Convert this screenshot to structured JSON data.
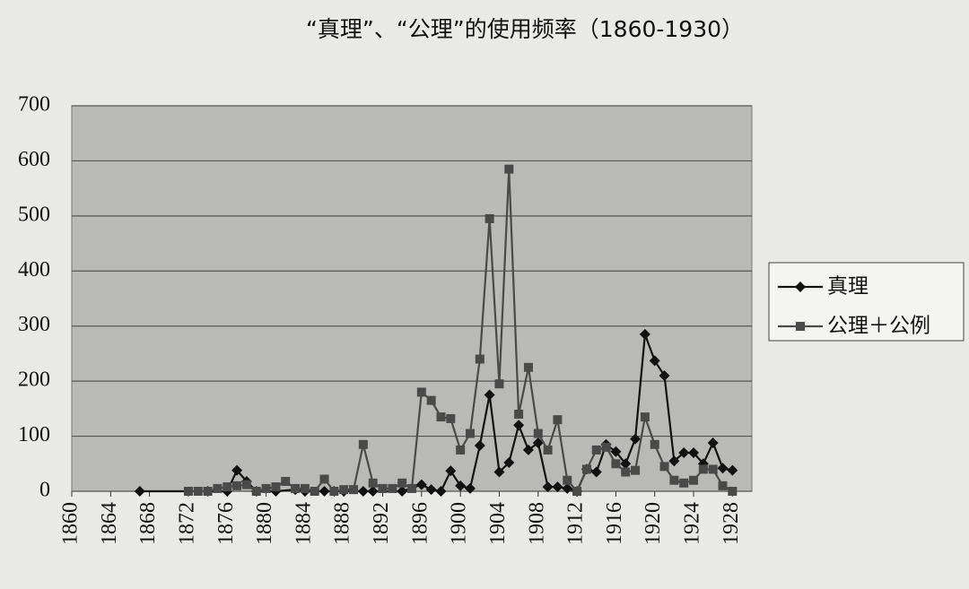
{
  "chart_data": {
    "type": "line",
    "title": "“真理”、“公理”的使用频率（1860-1930）",
    "xlim": [
      1860,
      1930
    ],
    "xticks": [
      1860,
      1864,
      1868,
      1872,
      1876,
      1880,
      1884,
      1888,
      1892,
      1896,
      1900,
      1904,
      1908,
      1912,
      1916,
      1920,
      1924,
      1928
    ],
    "ylim": [
      0,
      700
    ],
    "yticks": [
      0,
      100,
      200,
      300,
      400,
      500,
      600,
      700
    ],
    "grid": true,
    "legend": "right",
    "series": [
      {
        "name": "真理",
        "color": "#111111",
        "marker": "diamond",
        "x": [
          1867,
          1874,
          1876,
          1877,
          1878,
          1879,
          1881,
          1883,
          1884,
          1886,
          1887,
          1888,
          1890,
          1891,
          1894,
          1896,
          1897,
          1898,
          1899,
          1900,
          1901,
          1902,
          1903,
          1904,
          1905,
          1906,
          1907,
          1908,
          1909,
          1910,
          1911,
          1912,
          1913,
          1914,
          1915,
          1916,
          1917,
          1918,
          1919,
          1920,
          1921,
          1922,
          1923,
          1924,
          1925,
          1926,
          1927,
          1928
        ],
        "values": [
          0,
          0,
          0,
          38,
          18,
          0,
          0,
          3,
          0,
          0,
          0,
          0,
          0,
          0,
          0,
          12,
          3,
          0,
          37,
          10,
          5,
          83,
          175,
          35,
          52,
          120,
          75,
          88,
          8,
          8,
          5,
          0,
          40,
          35,
          85,
          72,
          50,
          95,
          285,
          237,
          210,
          55,
          70,
          70,
          50,
          88,
          42,
          38
        ]
      },
      {
        "name": "公理＋公例",
        "color": "#4a4a4a",
        "marker": "square",
        "x": [
          1872,
          1873,
          1874,
          1875,
          1876,
          1877,
          1878,
          1879,
          1880,
          1881,
          1882,
          1883,
          1884,
          1885,
          1886,
          1887,
          1888,
          1889,
          1890,
          1891,
          1892,
          1893,
          1894,
          1895,
          1896,
          1897,
          1898,
          1899,
          1900,
          1901,
          1902,
          1903,
          1904,
          1905,
          1906,
          1907,
          1908,
          1909,
          1910,
          1911,
          1912,
          1913,
          1914,
          1915,
          1916,
          1917,
          1918,
          1919,
          1920,
          1921,
          1922,
          1923,
          1924,
          1925,
          1926,
          1927,
          1928
        ],
        "values": [
          0,
          0,
          0,
          5,
          8,
          10,
          12,
          0,
          5,
          8,
          18,
          5,
          5,
          0,
          22,
          0,
          3,
          3,
          85,
          15,
          5,
          5,
          15,
          5,
          180,
          165,
          135,
          132,
          75,
          105,
          240,
          495,
          195,
          585,
          140,
          225,
          105,
          75,
          130,
          20,
          0,
          40,
          75,
          80,
          50,
          35,
          38,
          135,
          85,
          45,
          20,
          15,
          20,
          40,
          40,
          10,
          0
        ]
      }
    ]
  }
}
